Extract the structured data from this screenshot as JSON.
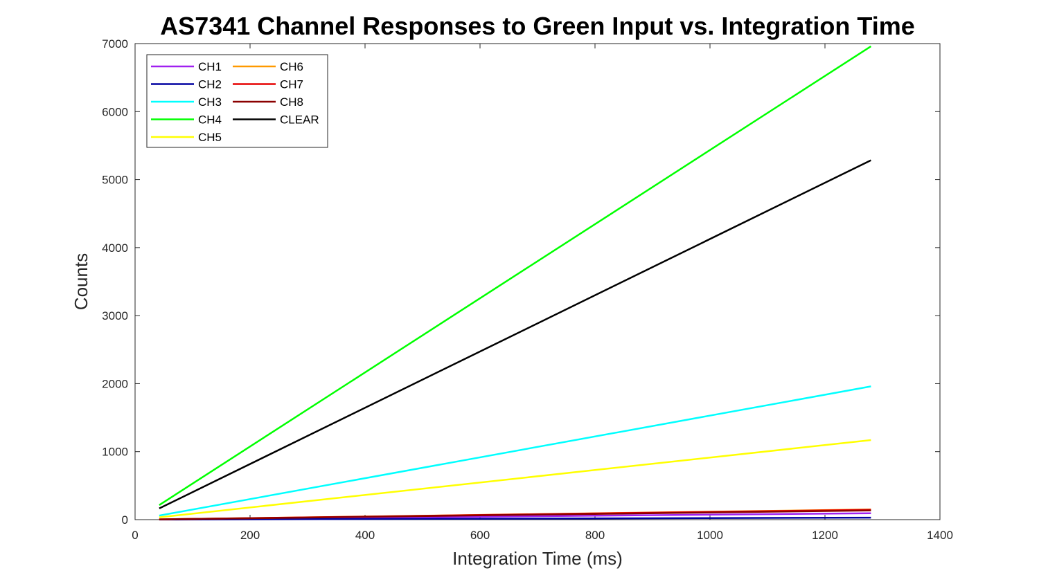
{
  "chart_data": {
    "type": "line",
    "title": "AS7341 Channel Responses to Green Input vs. Integration Time",
    "xlabel": "Integration Time (ms)",
    "ylabel": "Counts",
    "xlim": [
      0,
      1400
    ],
    "ylim": [
      0,
      7000
    ],
    "xticks": [
      0,
      200,
      400,
      600,
      800,
      1000,
      1200,
      1400
    ],
    "yticks": [
      0,
      1000,
      2000,
      3000,
      4000,
      5000,
      6000,
      7000
    ],
    "x": [
      42,
      1280
    ],
    "grid": false,
    "legend_position": "top-left",
    "legend_columns": 2,
    "series": [
      {
        "name": "CH1",
        "color": "#a020f0",
        "values": [
          2,
          95
        ]
      },
      {
        "name": "CH2",
        "color": "#0000a0",
        "values": [
          1,
          30
        ]
      },
      {
        "name": "CH3",
        "color": "#00ffff",
        "values": [
          60,
          1960
        ]
      },
      {
        "name": "CH4",
        "color": "#00ff00",
        "values": [
          215,
          6960
        ]
      },
      {
        "name": "CH5",
        "color": "#ffff00",
        "values": [
          35,
          1170
        ]
      },
      {
        "name": "CH6",
        "color": "#ff9900",
        "values": [
          4,
          150
        ]
      },
      {
        "name": "CH7",
        "color": "#e60000",
        "values": [
          4,
          145
        ]
      },
      {
        "name": "CH8",
        "color": "#8b0000",
        "values": [
          4,
          135
        ]
      },
      {
        "name": "CLEAR",
        "color": "#000000",
        "values": [
          165,
          5285
        ]
      }
    ]
  }
}
